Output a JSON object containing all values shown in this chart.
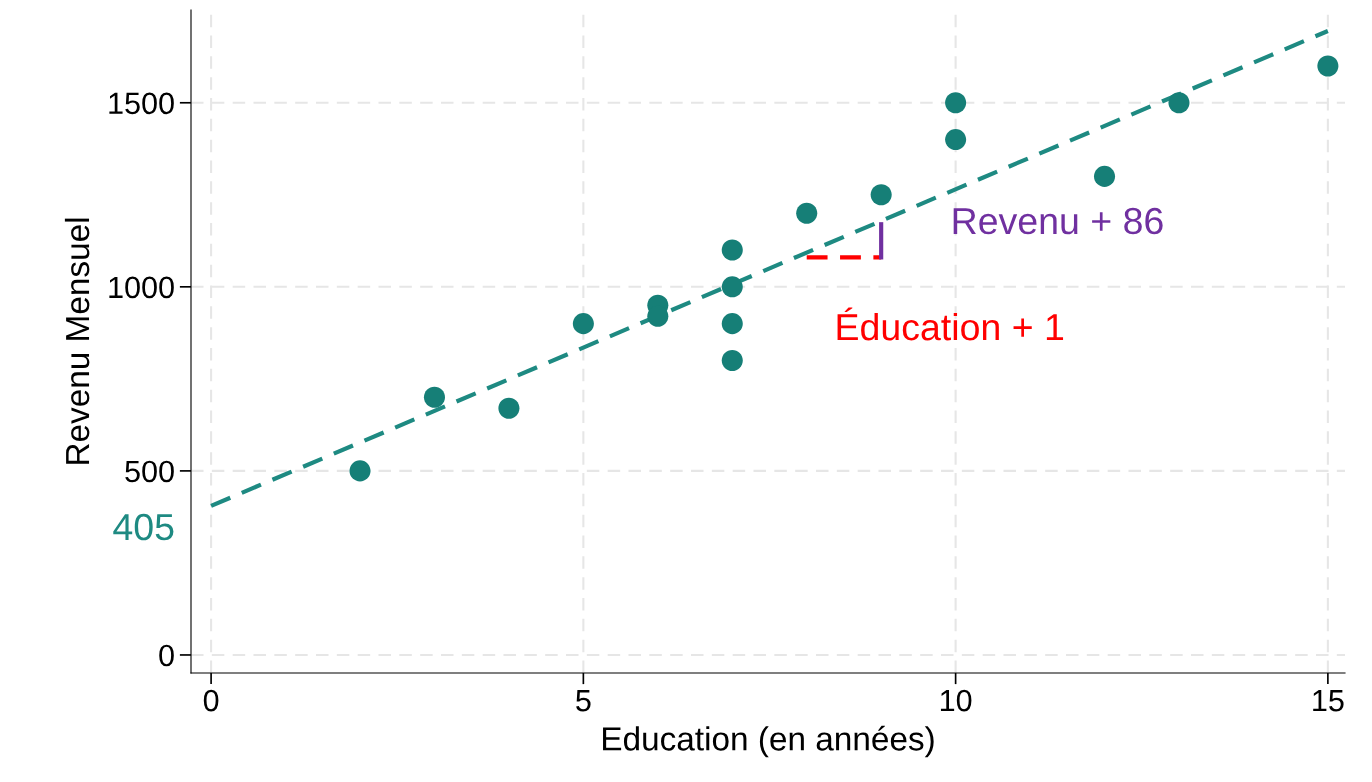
{
  "chart_data": {
    "type": "scatter",
    "xlabel": "Education (en années)",
    "ylabel": "Revenu Mensuel",
    "xlim": [
      -0.27,
      15.23
    ],
    "ylim": [
      -49,
      1752
    ],
    "xticks": [
      0,
      5,
      10,
      15
    ],
    "yticks": [
      0,
      500,
      1000,
      1500
    ],
    "grid": true,
    "legend": false,
    "series": [
      {
        "marker": "circle",
        "color": "#167f77",
        "x": [
          2,
          3,
          4,
          5,
          6,
          6,
          7,
          7,
          7,
          7,
          8,
          9,
          10,
          10,
          12,
          13,
          15
        ],
        "values": [
          500,
          700,
          670,
          900,
          950,
          920,
          1100,
          1000,
          900,
          800,
          1200,
          1250,
          1500,
          1400,
          1300,
          1500,
          1600
        ]
      },
      {
        "type": "line",
        "color": "#1e8a82",
        "line_style": "dashed",
        "marker": "none",
        "x": [
          0,
          15
        ],
        "values": [
          405,
          1695
        ]
      },
      {
        "type": "line",
        "color": "#ff0000",
        "line_style": "dashed",
        "marker": "none",
        "x": [
          8,
          9
        ],
        "values": [
          1080,
          1080
        ]
      },
      {
        "type": "line",
        "color": "#7030a0",
        "line_style": "solid",
        "marker": "none",
        "x": [
          9,
          9
        ],
        "values": [
          1080,
          1170
        ]
      }
    ],
    "annotations": [
      {
        "text": "405",
        "x": 0,
        "y": 405
      },
      "Revenu + 86",
      "Éducation + 1"
    ]
  }
}
